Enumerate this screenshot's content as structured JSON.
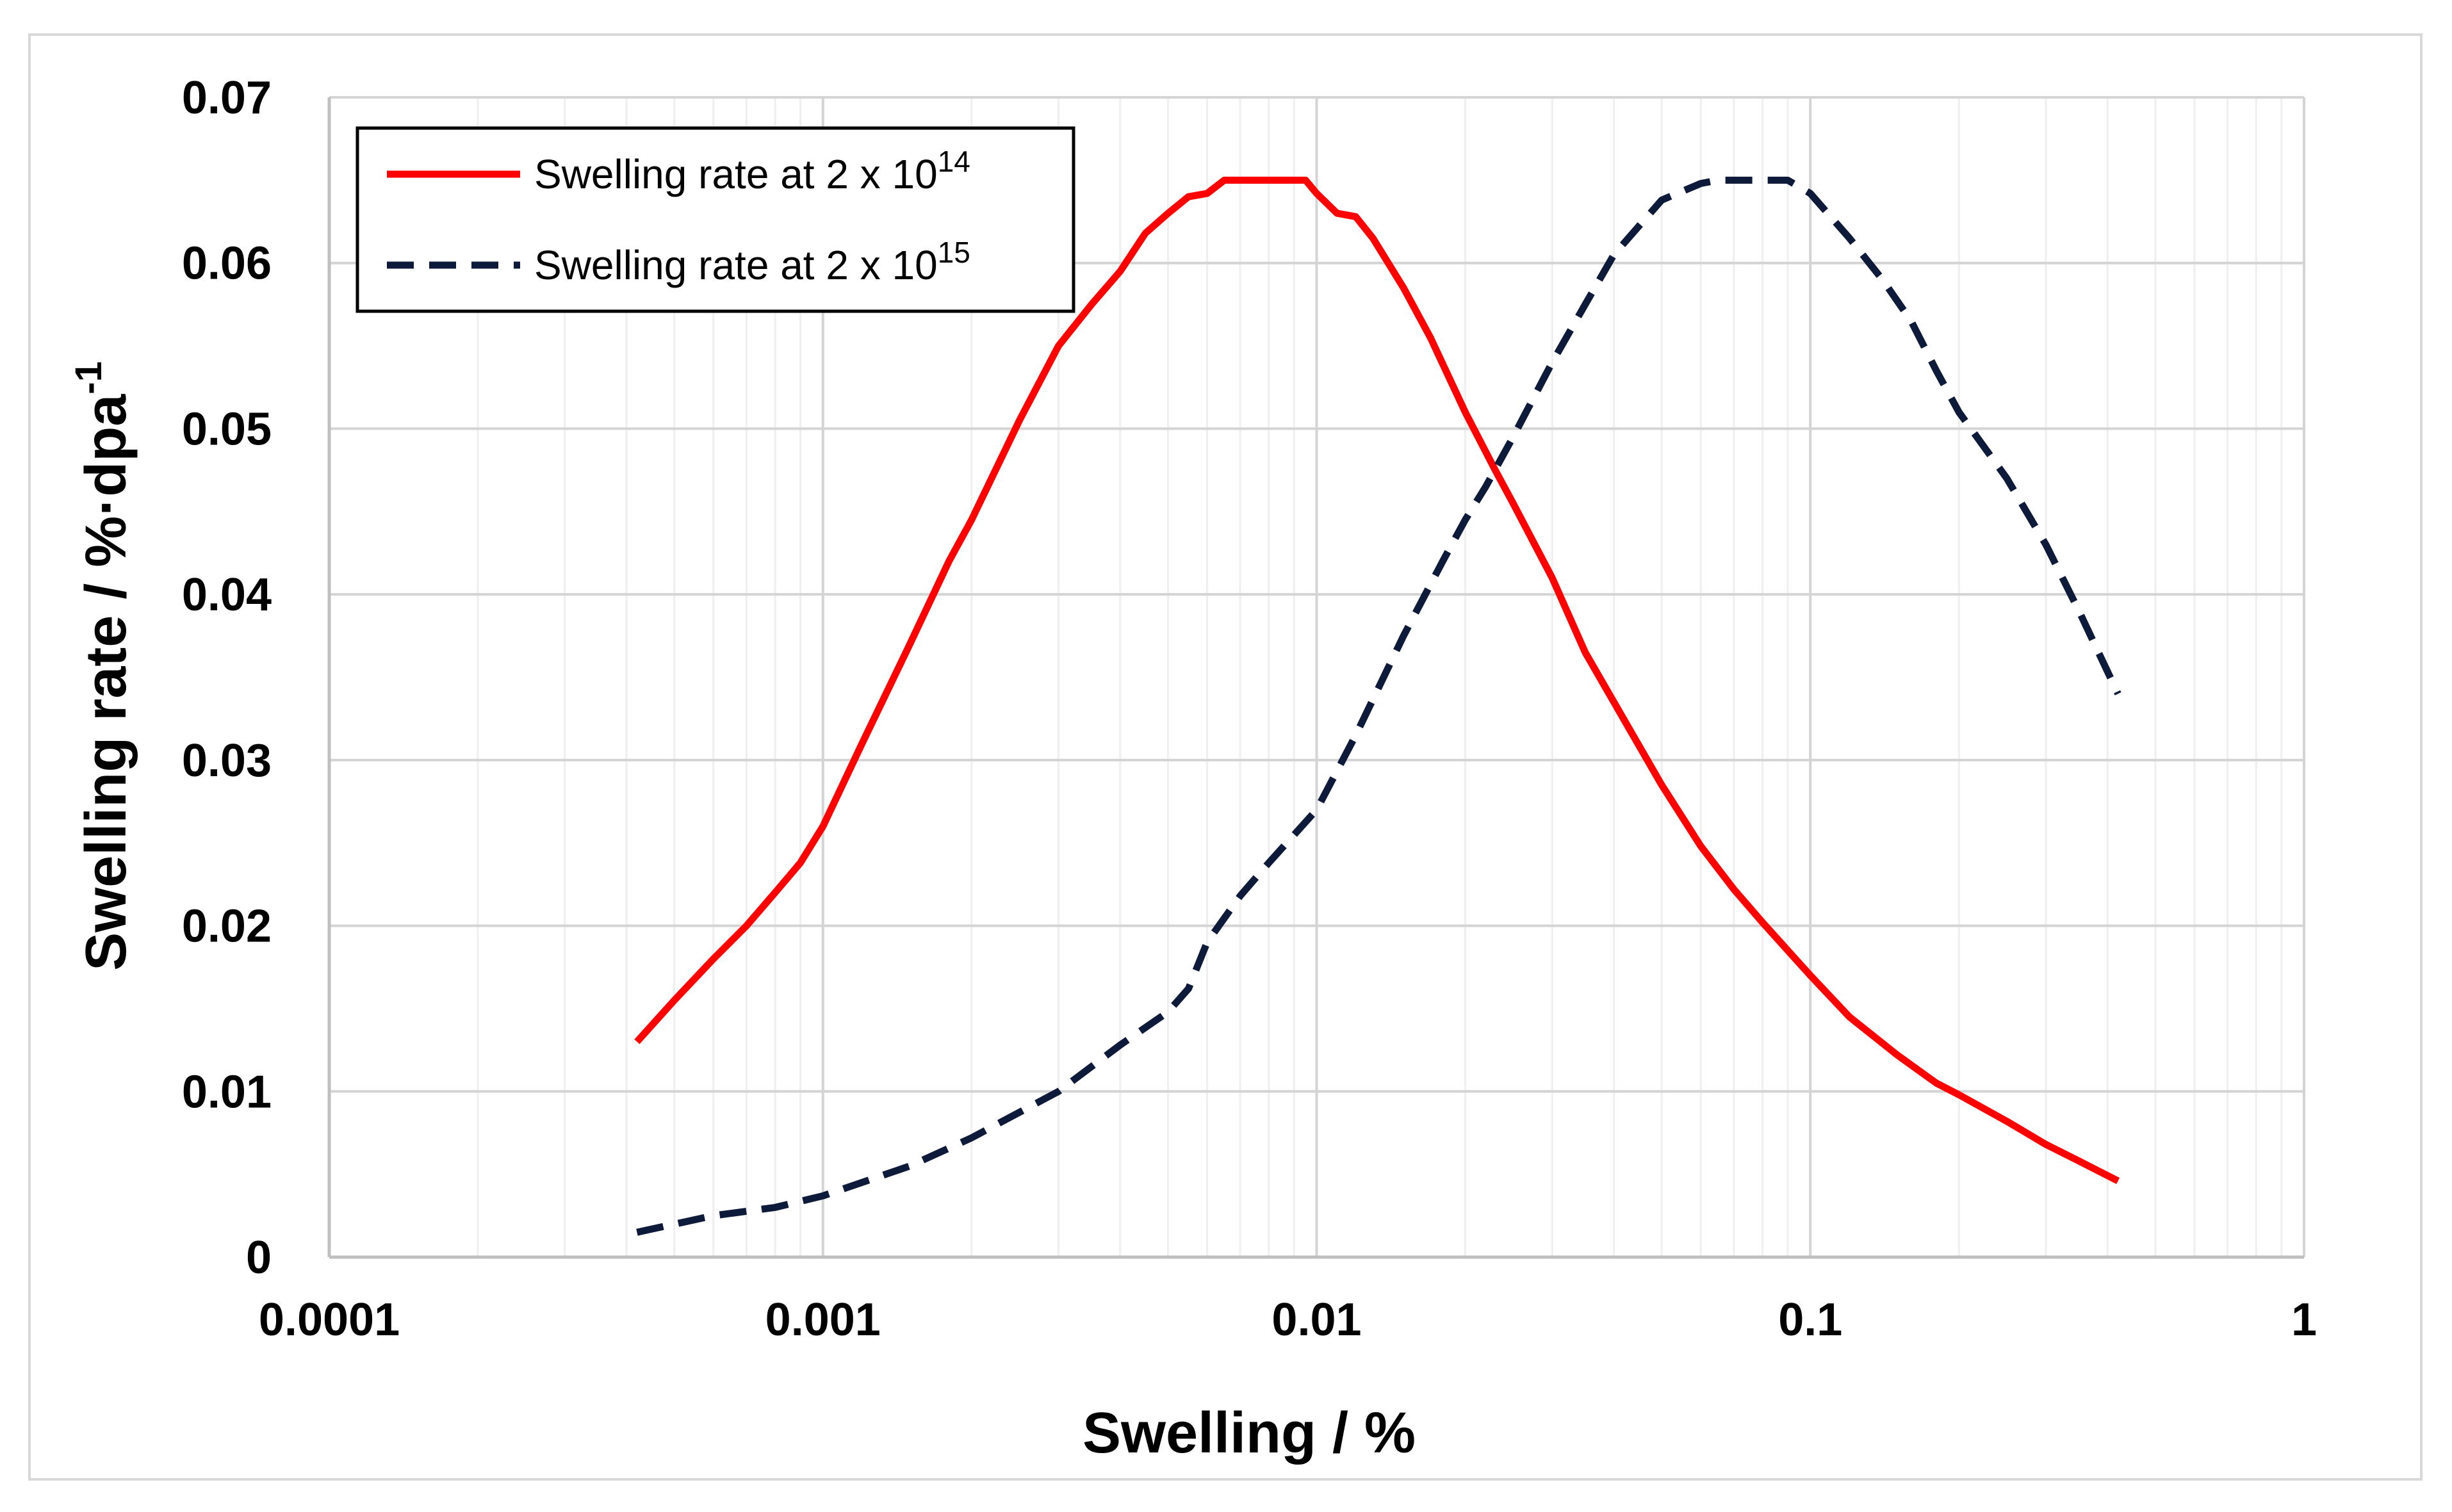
{
  "chart_data": {
    "type": "line",
    "xscale": "log",
    "xlim": [
      0.0001,
      1
    ],
    "ylim": [
      0,
      0.07
    ],
    "grid": true,
    "legend_position": "top-left",
    "xlabel": "Swelling / %",
    "ylabel_main": "Swelling rate / %·dpa",
    "ylabel_sup": "-1",
    "x_ticks": [
      "0.0001",
      "0.001",
      "0.01",
      "0.1",
      "1"
    ],
    "y_ticks": [
      "0",
      "0.01",
      "0.02",
      "0.03",
      "0.04",
      "0.05",
      "0.06",
      "0.07"
    ],
    "series": [
      {
        "name": "Swelling rate at 2 x 10",
        "name_sup": "14",
        "color": "#ff0000",
        "dash": "solid",
        "x": [
          0.00042,
          0.0005,
          0.0006,
          0.0007,
          0.0008,
          0.0009,
          0.001,
          0.0012,
          0.0015,
          0.0018,
          0.002,
          0.0025,
          0.003,
          0.0035,
          0.004,
          0.0045,
          0.005,
          0.0055,
          0.006,
          0.0065,
          0.007,
          0.008,
          0.009,
          0.0095,
          0.01,
          0.011,
          0.012,
          0.013,
          0.015,
          0.017,
          0.02,
          0.023,
          0.025,
          0.03,
          0.035,
          0.04,
          0.05,
          0.06,
          0.07,
          0.08,
          0.1,
          0.12,
          0.15,
          0.18,
          0.2,
          0.25,
          0.3,
          0.35,
          0.42
        ],
        "y": [
          0.013,
          0.0155,
          0.018,
          0.02,
          0.022,
          0.0238,
          0.026,
          0.031,
          0.037,
          0.042,
          0.0445,
          0.0505,
          0.055,
          0.0575,
          0.0595,
          0.0618,
          0.063,
          0.064,
          0.0642,
          0.065,
          0.065,
          0.065,
          0.065,
          0.065,
          0.0642,
          0.063,
          0.0628,
          0.0615,
          0.0585,
          0.0555,
          0.051,
          0.0475,
          0.0455,
          0.041,
          0.0365,
          0.0335,
          0.0285,
          0.0248,
          0.0222,
          0.0202,
          0.017,
          0.0145,
          0.0122,
          0.0105,
          0.0098,
          0.0082,
          0.0068,
          0.0058,
          0.0046
        ]
      },
      {
        "name": "Swelling rate at 2 x 10",
        "name_sup": "15",
        "color": "#0d1a3a",
        "dash": "dashed",
        "x": [
          0.00042,
          0.0006,
          0.0008,
          0.001,
          0.0015,
          0.002,
          0.003,
          0.004,
          0.005,
          0.0055,
          0.006,
          0.007,
          0.008,
          0.01,
          0.012,
          0.015,
          0.018,
          0.02,
          0.022,
          0.025,
          0.03,
          0.035,
          0.04,
          0.05,
          0.06,
          0.065,
          0.07,
          0.08,
          0.09,
          0.1,
          0.12,
          0.14,
          0.16,
          0.18,
          0.2,
          0.25,
          0.3,
          0.35,
          0.42
        ],
        "y": [
          0.0015,
          0.0025,
          0.003,
          0.0037,
          0.0055,
          0.0072,
          0.01,
          0.0128,
          0.0148,
          0.0162,
          0.019,
          0.0218,
          0.0238,
          0.027,
          0.0315,
          0.0375,
          0.042,
          0.0445,
          0.0465,
          0.0495,
          0.054,
          0.0575,
          0.0605,
          0.0638,
          0.0648,
          0.065,
          0.065,
          0.065,
          0.065,
          0.0642,
          0.0615,
          0.059,
          0.0565,
          0.0535,
          0.051,
          0.047,
          0.043,
          0.039,
          0.034
        ]
      }
    ]
  }
}
